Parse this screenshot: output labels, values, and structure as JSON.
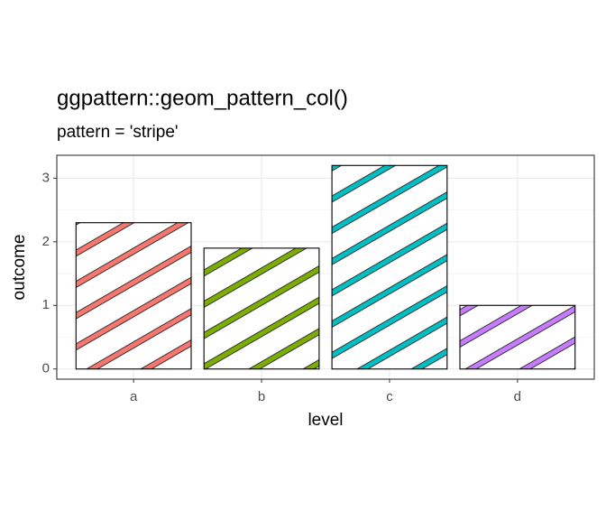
{
  "chart_data": {
    "type": "bar",
    "title": "ggpattern::geom_pattern_col()",
    "subtitle": "pattern = 'stripe'",
    "x_label": "level",
    "y_label": "outcome",
    "categories": [
      "a",
      "b",
      "c",
      "d"
    ],
    "values": [
      2.3,
      1.9,
      3.2,
      1.0
    ],
    "colors": [
      "#F8766D",
      "#7CAE00",
      "#00BFC4",
      "#C77CFF"
    ],
    "ylim": [
      -0.16,
      3.36
    ],
    "yticks": [
      0,
      1,
      2,
      3
    ],
    "grid": true
  }
}
